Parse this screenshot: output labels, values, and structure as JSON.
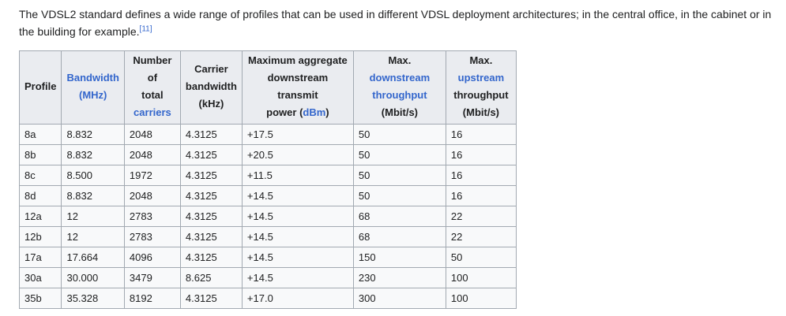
{
  "intro": {
    "text": "The VDSL2 standard defines a wide range of profiles that can be used in different VDSL deployment architectures; in the central office, in the cabinet or in the building for example.",
    "citation": "[11]"
  },
  "table": {
    "headers": {
      "profile": "Profile",
      "bandwidth_link": "Bandwidth",
      "bandwidth_unit": "(MHz)",
      "carriers_line1": "Number of",
      "carriers_line2": "total",
      "carriers_link": "carriers",
      "carrier_bw_line1": "Carrier",
      "carrier_bw_line2": "bandwidth",
      "carrier_bw_unit": "(kHz)",
      "power_line1": "Maximum aggregate",
      "power_line2": "downstream transmit",
      "power_prefix": "power (",
      "power_link": "dBm",
      "power_suffix": ")",
      "down_prefix": "Max. ",
      "down_link1": "downstream",
      "down_link2": "throughput",
      "down_unit": "(Mbit/s)",
      "up_prefix": "Max. ",
      "up_link": "upstream",
      "up_line2": "throughput",
      "up_unit": "(Mbit/s)"
    },
    "rows": [
      [
        "8a",
        "8.832",
        "2048",
        "4.3125",
        "+17.5",
        "50",
        "16"
      ],
      [
        "8b",
        "8.832",
        "2048",
        "4.3125",
        "+20.5",
        "50",
        "16"
      ],
      [
        "8c",
        "8.500",
        "1972",
        "4.3125",
        "+11.5",
        "50",
        "16"
      ],
      [
        "8d",
        "8.832",
        "2048",
        "4.3125",
        "+14.5",
        "50",
        "16"
      ],
      [
        "12a",
        "12",
        "2783",
        "4.3125",
        "+14.5",
        "68",
        "22"
      ],
      [
        "12b",
        "12",
        "2783",
        "4.3125",
        "+14.5",
        "68",
        "22"
      ],
      [
        "17a",
        "17.664",
        "4096",
        "4.3125",
        "+14.5",
        "150",
        "50"
      ],
      [
        "30a",
        "30.000",
        "3479",
        "8.625",
        "+14.5",
        "230",
        "100"
      ],
      [
        "35b",
        "35.328",
        "8192",
        "4.3125",
        "+17.0",
        "300",
        "100"
      ]
    ]
  }
}
